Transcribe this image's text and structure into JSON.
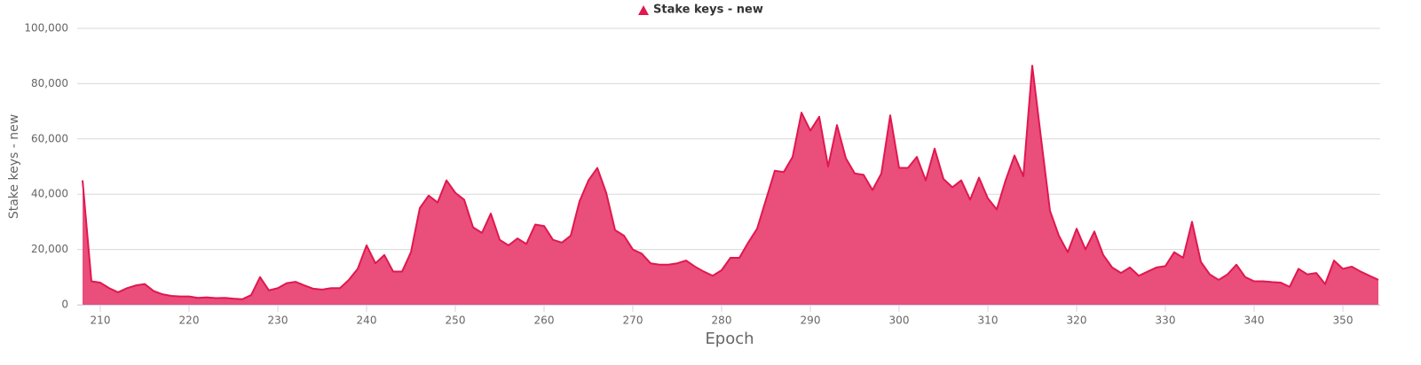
{
  "chart_data": {
    "type": "area",
    "legend_label": "Stake keys - new",
    "ylabel": "Stake keys - new",
    "xlabel": "Epoch",
    "x": [
      208,
      209,
      210,
      211,
      212,
      213,
      214,
      215,
      216,
      217,
      218,
      219,
      220,
      221,
      222,
      223,
      224,
      225,
      226,
      227,
      228,
      229,
      230,
      231,
      232,
      233,
      234,
      235,
      236,
      237,
      238,
      239,
      240,
      241,
      242,
      243,
      244,
      245,
      246,
      247,
      248,
      249,
      250,
      251,
      252,
      253,
      254,
      255,
      256,
      257,
      258,
      259,
      260,
      261,
      262,
      263,
      264,
      265,
      266,
      267,
      268,
      269,
      270,
      271,
      272,
      273,
      274,
      275,
      276,
      277,
      278,
      279,
      280,
      281,
      282,
      283,
      284,
      285,
      286,
      287,
      288,
      289,
      290,
      291,
      292,
      293,
      294,
      295,
      296,
      297,
      298,
      299,
      300,
      301,
      302,
      303,
      304,
      305,
      306,
      307,
      308,
      309,
      310,
      311,
      312,
      313,
      314,
      315,
      316,
      317,
      318,
      319,
      320,
      321,
      322,
      323,
      324,
      325,
      326,
      327,
      328,
      329,
      330,
      331,
      332,
      333,
      334,
      335,
      336,
      337,
      338,
      339,
      340,
      341,
      342,
      343,
      344,
      345,
      346,
      347,
      348,
      349,
      350,
      351,
      352,
      353,
      354
    ],
    "series": [
      {
        "name": "Stake keys - new",
        "color": "#e0184f",
        "fill": "#ea4a78",
        "values": [
          45000,
          8500,
          8000,
          6000,
          4500,
          6000,
          7000,
          7500,
          5000,
          3800,
          3200,
          3000,
          3000,
          2500,
          2700,
          2400,
          2500,
          2200,
          2000,
          3500,
          10000,
          5200,
          6000,
          7800,
          8300,
          7000,
          5800,
          5500,
          6000,
          6000,
          9000,
          13000,
          21500,
          15000,
          18000,
          12000,
          12000,
          19000,
          35000,
          39500,
          37000,
          45000,
          40500,
          38000,
          28000,
          26000,
          33000,
          23500,
          21500,
          24000,
          22000,
          29000,
          28500,
          23500,
          22500,
          25000,
          37500,
          45000,
          49500,
          40500,
          27000,
          25000,
          20000,
          18500,
          15000,
          14500,
          14500,
          15000,
          16000,
          13800,
          12000,
          10500,
          12500,
          17000,
          17000,
          22500,
          27500,
          38000,
          48500,
          48000,
          53500,
          69500,
          63000,
          68000,
          50000,
          65000,
          53000,
          47500,
          47000,
          41500,
          47500,
          68500,
          49500,
          49500,
          53500,
          45000,
          56500,
          45500,
          42500,
          45000,
          38000,
          46000,
          38500,
          34500,
          45000,
          54000,
          46500,
          86500,
          60000,
          34000,
          25000,
          19000,
          27500,
          20000,
          26500,
          18000,
          13500,
          11500,
          13500,
          10500,
          12000,
          13500,
          14000,
          19000,
          17000,
          30000,
          15500,
          11000,
          9000,
          11000,
          14500,
          10000,
          8500,
          8500,
          8200,
          8000,
          6500,
          13000,
          11000,
          11500,
          7500,
          16000,
          13000,
          13800,
          12000,
          10500,
          9000
        ]
      }
    ],
    "xlim": [
      207.4,
      354.2
    ],
    "xticks": [
      210,
      220,
      230,
      240,
      250,
      260,
      270,
      280,
      290,
      300,
      310,
      320,
      330,
      340,
      350
    ],
    "ylim": [
      0,
      100000
    ],
    "yticks": [
      0,
      {
        "value": 20000,
        "label": "20,000"
      },
      {
        "value": 40000,
        "label": "40,000"
      },
      {
        "value": 60000,
        "label": "60,000"
      },
      {
        "value": 80000,
        "label": "80,000"
      },
      {
        "value": 100000,
        "label": "100,000"
      }
    ],
    "grid": true
  }
}
